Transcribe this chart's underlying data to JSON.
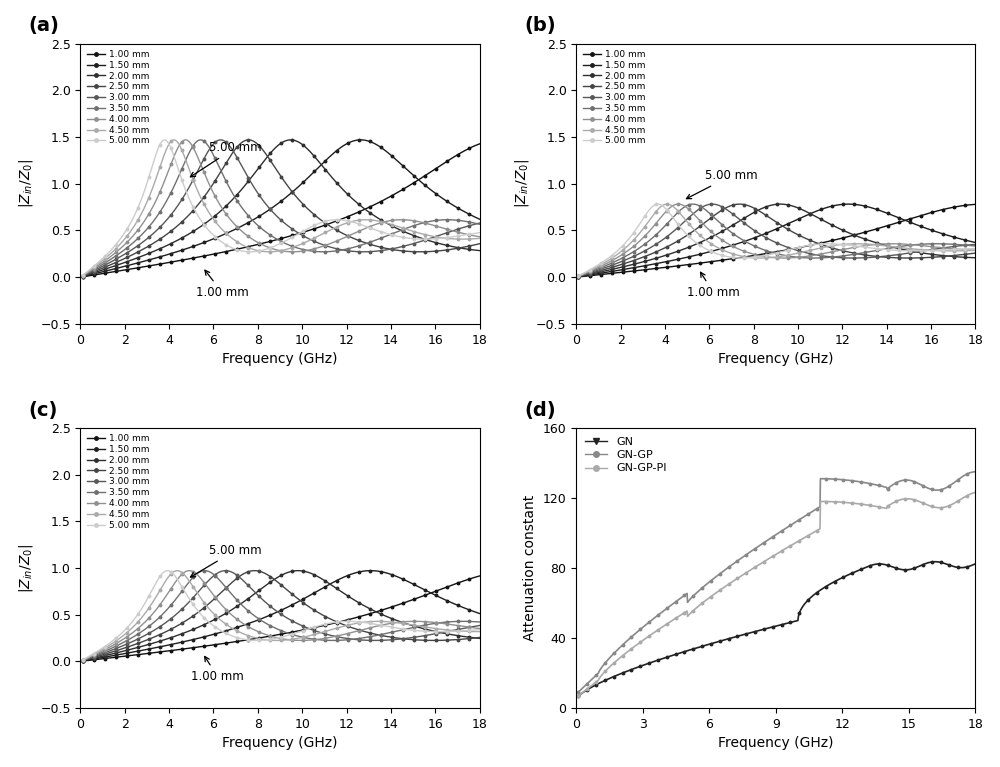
{
  "thicknesses": [
    1.0,
    1.5,
    2.0,
    2.5,
    3.0,
    3.5,
    4.0,
    4.5,
    5.0
  ],
  "freq_min": 0.1,
  "freq_max": 18.0,
  "freq_points": 900,
  "ylim": [
    -0.5,
    2.5
  ],
  "xlim": [
    0,
    18
  ],
  "xlabel": "Frequency (GHz)",
  "ylabel_abc": "$|Z_{in}/Z_0|$",
  "ylabel_d": "Attenuation constant",
  "panel_labels": [
    "(a)",
    "(b)",
    "(c)",
    "(d)"
  ],
  "legend_labels": [
    "1.00 mm",
    "1.50 mm",
    "2.00 mm",
    "2.50 mm",
    "3.00 mm",
    "3.50 mm",
    "4.00 mm",
    "4.50 mm",
    "5.00 mm"
  ],
  "legend_d": [
    "GN",
    "GN-GP",
    "GN-GP-PI"
  ],
  "annotation_5mm": "5.00 mm",
  "annotation_1mm": "1.00 mm",
  "gray_colors_1to9": [
    "#111111",
    "#1e1e1e",
    "#2e2e2e",
    "#444444",
    "#585858",
    "#707070",
    "#909090",
    "#aaaaaa",
    "#cccccc"
  ],
  "background_color": "#ffffff"
}
